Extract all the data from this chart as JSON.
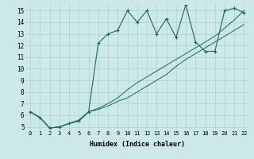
{
  "xlabel": "Humidex (Indice chaleur)",
  "bg_color": "#cce8e8",
  "grid_color": "#b0d4d4",
  "line_color": "#1a6b5a",
  "xlim": [
    -0.5,
    22.5
  ],
  "ylim": [
    4.7,
    15.5
  ],
  "xtick_labels": [
    "0",
    "1",
    "2",
    "3",
    "4",
    "5",
    "6",
    "7",
    "8",
    "9",
    "10",
    "11",
    "12",
    "13",
    "14",
    "15",
    "16",
    "17",
    "18",
    "19",
    "20",
    "21",
    "22"
  ],
  "ytick_labels": [
    "5",
    "6",
    "7",
    "8",
    "9",
    "10",
    "11",
    "12",
    "13",
    "14",
    "15"
  ],
  "series1_y": [
    6.3,
    5.8,
    4.9,
    5.0,
    5.3,
    5.5,
    6.3,
    6.5,
    6.8,
    7.2,
    7.5,
    8.0,
    8.5,
    9.0,
    9.5,
    10.2,
    10.8,
    11.3,
    11.8,
    12.3,
    12.8,
    13.3,
    13.8
  ],
  "series2_y": [
    6.3,
    5.8,
    4.9,
    5.0,
    5.3,
    5.6,
    6.3,
    6.6,
    7.0,
    7.5,
    8.2,
    8.8,
    9.3,
    9.8,
    10.3,
    10.8,
    11.3,
    11.8,
    12.3,
    12.8,
    13.5,
    14.2,
    15.0
  ],
  "series3_y": [
    6.3,
    5.8,
    4.9,
    5.0,
    5.3,
    5.5,
    6.3,
    12.2,
    13.0,
    13.3,
    15.0,
    14.0,
    15.0,
    13.0,
    14.3,
    12.7,
    15.5,
    12.3,
    11.5,
    11.5,
    15.0,
    15.2,
    14.8
  ]
}
